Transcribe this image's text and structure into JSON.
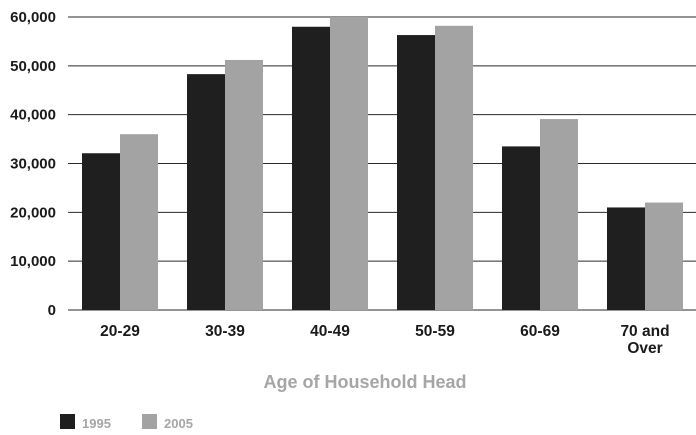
{
  "chart_data": {
    "type": "bar",
    "categories": [
      "20-29",
      "30-39",
      "40-49",
      "50-59",
      "60-69",
      "70 and\nOver"
    ],
    "series": [
      {
        "name": "1995",
        "color": "#1f1f1f",
        "values": [
          32100,
          48300,
          58000,
          56300,
          33500,
          21000
        ]
      },
      {
        "name": "2005",
        "color": "#a3a3a3",
        "values": [
          36000,
          51200,
          60000,
          58200,
          39100,
          22000
        ]
      }
    ],
    "xlabel": "Age of Household Head",
    "ylabel": "",
    "ylim": [
      0,
      60000
    ],
    "yticks": [
      0,
      10000,
      20000,
      30000,
      40000,
      50000,
      60000
    ],
    "ytick_labels": [
      "0",
      "10,000",
      "20,000",
      "30,000",
      "40,000",
      "50,000",
      "60,000"
    ],
    "grid": true,
    "legend_position": "bottom-left",
    "colors": {
      "grid": "#2a2a2a",
      "xlabel": "#a6a6a6",
      "legend_text": "#a6a6a6"
    }
  }
}
